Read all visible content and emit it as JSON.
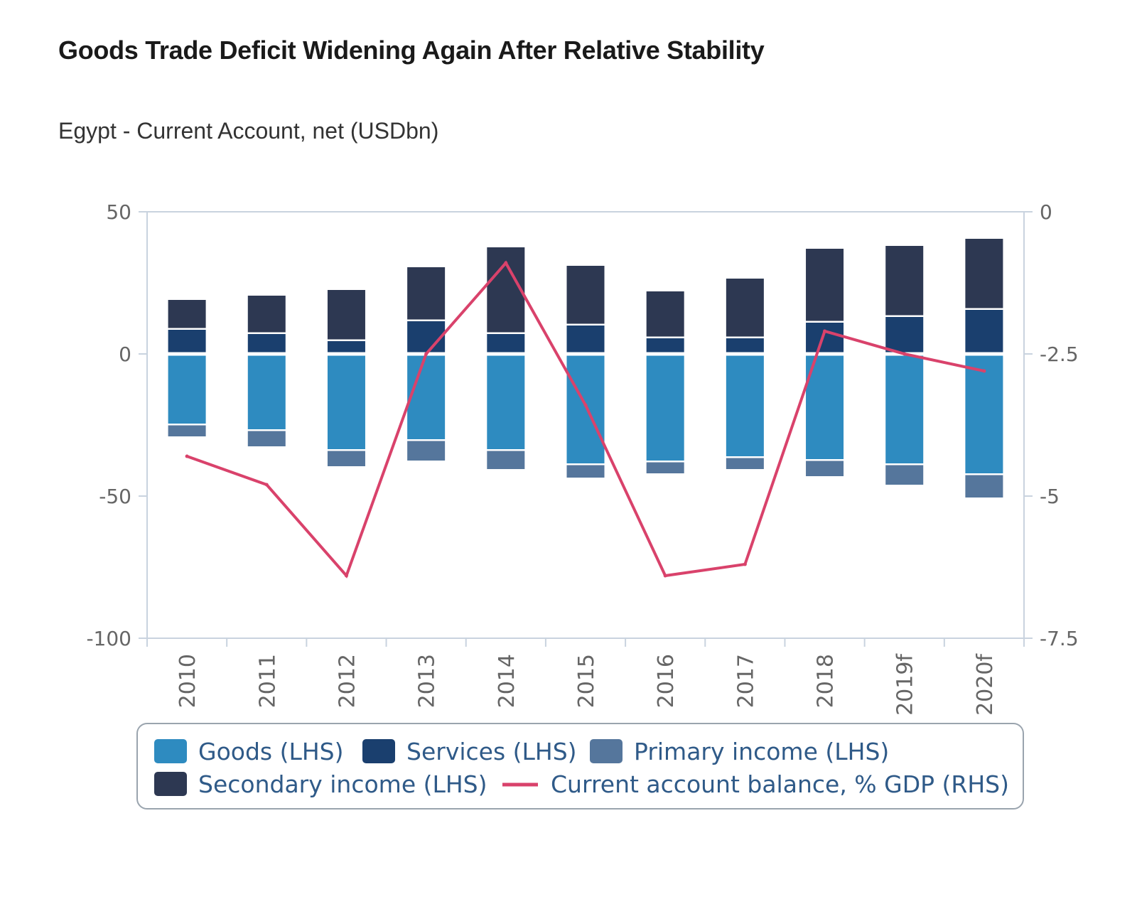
{
  "title": "Goods Trade Deficit Widening Again After Relative Stability",
  "subtitle": "Egypt - Current Account, net (USDbn)",
  "colors": {
    "goods": "#2e8bc0",
    "services": "#1a3f6e",
    "primary": "#55769c",
    "secondary": "#2d3852",
    "line": "#d9426b",
    "axis": "#c9d3df",
    "grid_frame": "#c9d3df"
  },
  "chart_data": {
    "type": "bar",
    "stacked": true,
    "categories": [
      "2010",
      "2011",
      "2012",
      "2013",
      "2014",
      "2015",
      "2016",
      "2017",
      "2018",
      "2019f",
      "2020f"
    ],
    "series": [
      {
        "name": "Goods (LHS)",
        "key": "goods",
        "axis": "left",
        "values": [
          -24.5,
          -26.5,
          -33.5,
          -30,
          -33.5,
          -38.5,
          -37.5,
          -36,
          -37,
          -38.5,
          -42
        ]
      },
      {
        "name": "Services (LHS)",
        "key": "services",
        "axis": "left",
        "values": [
          8.5,
          7,
          4.5,
          11.5,
          7,
          10,
          5.5,
          5.5,
          11,
          13,
          15.5
        ]
      },
      {
        "name": "Primary income (LHS)",
        "key": "primary",
        "axis": "left",
        "values": [
          -4.5,
          -6,
          -6,
          -7.5,
          -7,
          -5,
          -4.5,
          -4.5,
          -6,
          -7.5,
          -8.5
        ]
      },
      {
        "name": "Secondary income (LHS)",
        "key": "secondary",
        "axis": "left",
        "values": [
          10.5,
          13.5,
          18,
          19,
          30.5,
          21,
          16.5,
          21,
          26,
          25,
          25
        ]
      },
      {
        "name": "Current account balance, % GDP (RHS)",
        "key": "line",
        "axis": "right",
        "type": "line",
        "values": [
          -4.3,
          -4.8,
          -6.4,
          -2.5,
          -0.9,
          -3.4,
          -6.4,
          -6.2,
          -2.1,
          -2.5,
          -2.8
        ]
      }
    ],
    "yleft": {
      "ylim": [
        -100,
        50
      ],
      "ticks": [
        50,
        0,
        -50,
        -100
      ],
      "tick_labels": [
        "50",
        "0",
        "-50",
        "-100"
      ]
    },
    "yright": {
      "ylim": [
        -7.5,
        0
      ],
      "ticks": [
        0,
        -2.5,
        -5,
        -7.5
      ],
      "tick_labels": [
        "0",
        "-2.5",
        "-5",
        "-7.5"
      ]
    },
    "grid": false,
    "legend": {
      "placement": "bottom",
      "rows": [
        [
          {
            "label": "Goods (LHS)",
            "key": "goods",
            "kind": "box"
          },
          {
            "label": "Services (LHS)",
            "key": "services",
            "kind": "box"
          },
          {
            "label": "Primary income (LHS)",
            "key": "primary",
            "kind": "box"
          }
        ],
        [
          {
            "label": "Secondary income (LHS)",
            "key": "secondary",
            "kind": "box"
          },
          {
            "label": "Current account balance, % GDP (RHS)",
            "key": "line",
            "kind": "line"
          }
        ]
      ]
    }
  }
}
